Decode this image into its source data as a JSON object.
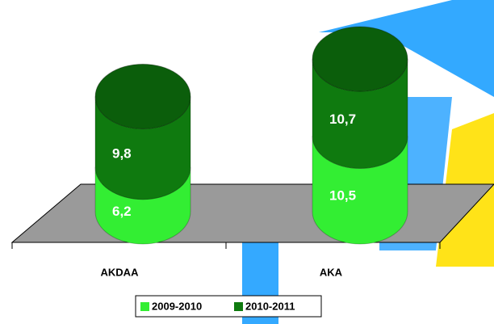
{
  "chart_data": {
    "type": "stacked-cylinder",
    "categories": [
      "AKDAA",
      "AKA"
    ],
    "series": [
      {
        "name": "2009-2010",
        "color": "#33ee33",
        "values": [
          6.2,
          10.5
        ],
        "value_labels": [
          "6,2",
          "10,5"
        ]
      },
      {
        "name": "2010-2011",
        "color": "#0f7a0f",
        "values": [
          9.8,
          10.7
        ],
        "value_labels": [
          "9,8",
          "10,7"
        ]
      }
    ],
    "legend": "bottom"
  }
}
